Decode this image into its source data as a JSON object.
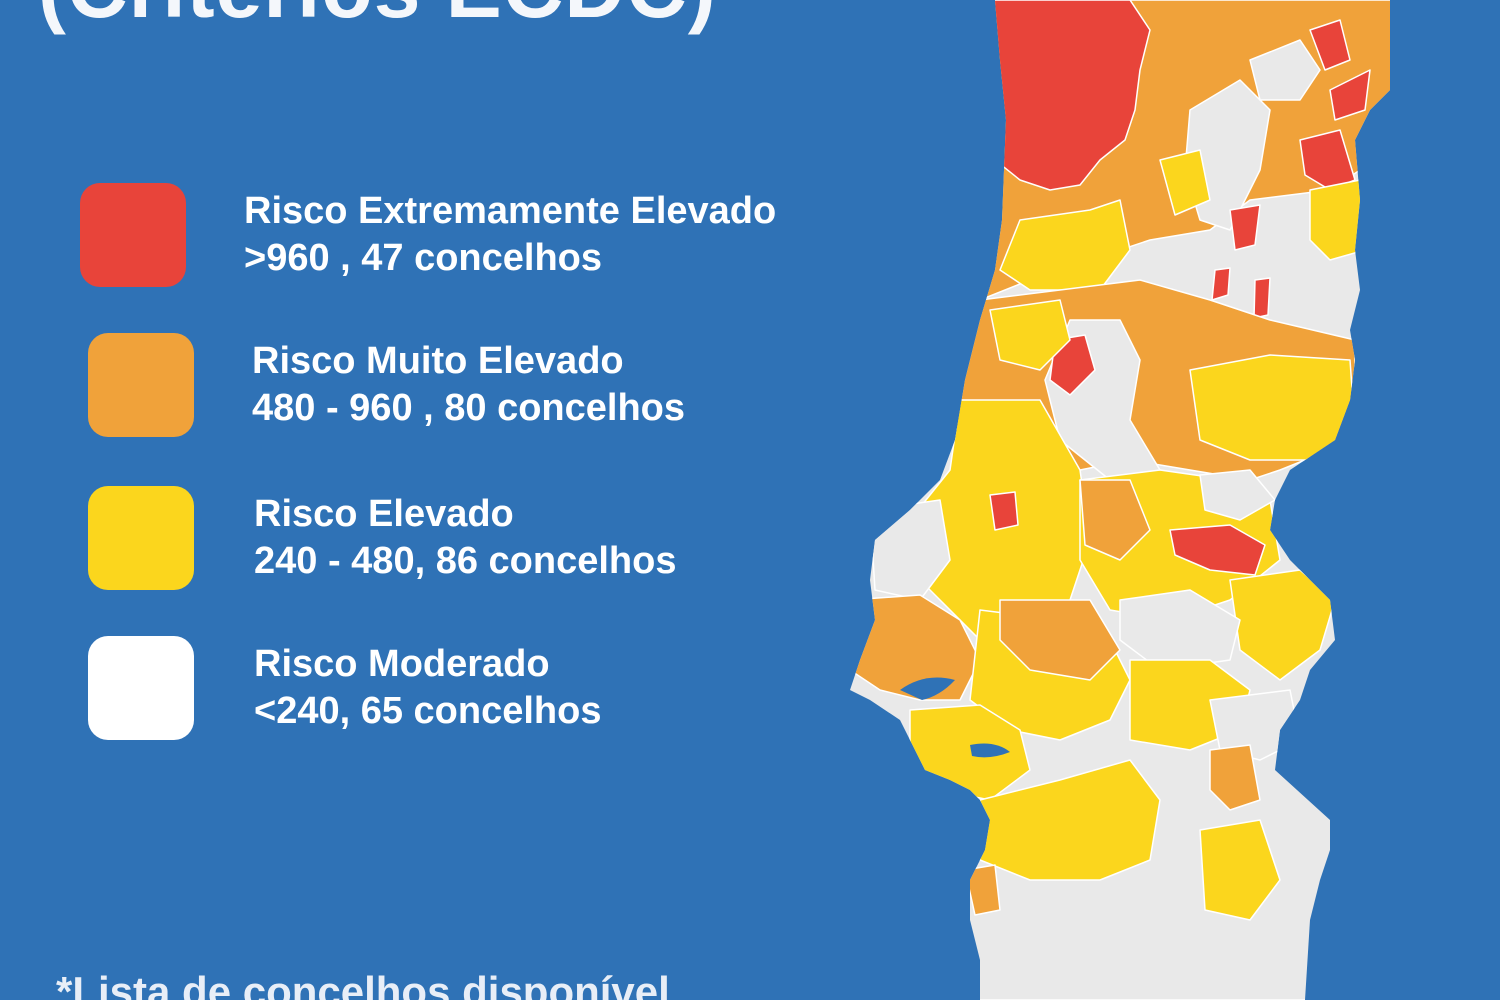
{
  "header": {
    "title": "(Critérios ECDC)"
  },
  "legend": {
    "items": [
      {
        "label": "Risco Extremamente Elevado",
        "range": ">960 , 47 concelhos",
        "color": "#e8443a"
      },
      {
        "label": "Risco Muito Elevado",
        "range": "480 - 960 , 80 concelhos",
        "color": "#f0a23a"
      },
      {
        "label": "Risco Elevado",
        "range": "240 - 480, 86 concelhos",
        "color": "#fbd61d"
      },
      {
        "label": "Risco Moderado",
        "range": "<240, 65 concelhos",
        "color": "#ffffff"
      }
    ]
  },
  "footnote": "*Lista de concelhos disponível",
  "map": {
    "colors": {
      "extreme": "#e8443a",
      "very_high": "#f0a23a",
      "high": "#fbd61d",
      "moderate": "#e9e9e9",
      "border": "#ffffff"
    }
  }
}
